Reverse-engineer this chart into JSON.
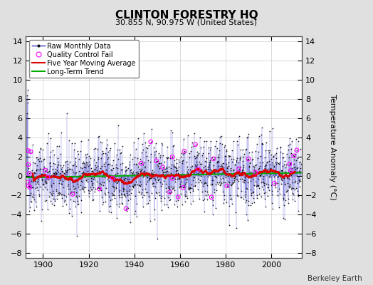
{
  "title": "CLINTON FORESTRY HQ",
  "subtitle": "30.855 N, 90.975 W (United States)",
  "ylabel": "Temperature Anomaly (°C)",
  "attribution": "Berkeley Earth",
  "year_start": 1893,
  "year_end": 2013,
  "ylim": [
    -8.5,
    14.5
  ],
  "yticks": [
    -8,
    -6,
    -4,
    -2,
    0,
    2,
    4,
    6,
    8,
    10,
    12,
    14
  ],
  "xticks": [
    1900,
    1920,
    1940,
    1960,
    1980,
    2000
  ],
  "fig_background_color": "#e0e0e0",
  "plot_bg_color": "#ffffff",
  "raw_line_color": "#3333cc",
  "raw_marker_color": "#111111",
  "qc_fail_color": "#ff00ff",
  "moving_avg_color": "#dd0000",
  "trend_color": "#00aa00",
  "grid_color": "#cccccc",
  "seed": 42,
  "noise_amplitude": 1.8,
  "qc_fail_indices": [
    5,
    6,
    7,
    8,
    12,
    15,
    20,
    240,
    380,
    450,
    520,
    600,
    680,
    750,
    820,
    900,
    980,
    1050,
    1200,
    1300,
    1380,
    1450,
    1520,
    1600,
    1680,
    1750
  ]
}
